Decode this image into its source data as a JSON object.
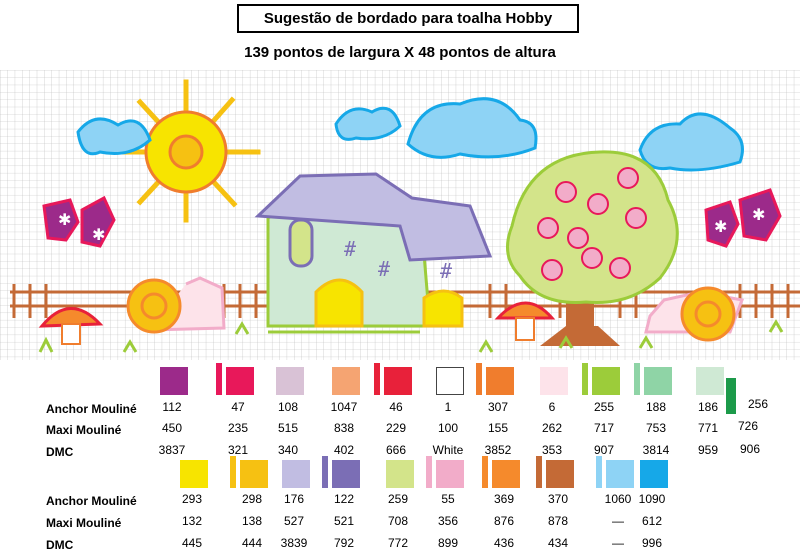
{
  "title": "Sugestão de bordado para toalha Hobby",
  "subtitle": "139 pontos de largura X 48 pontos de altura",
  "row_labels": {
    "anchor": "Anchor Mouliné",
    "maxi": "Maxi Mouliné",
    "dmc": "DMC"
  },
  "colors_top": [
    {
      "hex": "#9c2a8a",
      "hex2": null,
      "anchor": "112",
      "maxi": "450",
      "dmc": "3837"
    },
    {
      "hex": "#e8185a",
      "hex2": "#e8185a",
      "anchor": "47",
      "maxi": "235",
      "dmc": "321"
    },
    {
      "hex": "#d9c2d6",
      "hex2": null,
      "anchor": "108",
      "maxi": "515",
      "dmc": "340"
    },
    {
      "hex": "#f5a472",
      "hex2": null,
      "anchor": "1047",
      "maxi": "838",
      "dmc": "402"
    },
    {
      "hex": "#e8213a",
      "hex2": "#e8213a",
      "anchor": "46",
      "maxi": "229",
      "dmc": "666"
    },
    {
      "hex": "#ffffff",
      "hex2": null,
      "anchor": "1",
      "maxi": "100",
      "dmc": "White"
    },
    {
      "hex": "#f07d2d",
      "hex2": "#f07d2d",
      "anchor": "307",
      "maxi": "155",
      "dmc": "3852"
    },
    {
      "hex": "#fde3ea",
      "hex2": null,
      "anchor": "6",
      "maxi": "262",
      "dmc": "353"
    },
    {
      "hex": "#9ccc3a",
      "hex2": "#9ccc3a",
      "anchor": "255",
      "maxi": "717",
      "dmc": "907"
    },
    {
      "hex": "#8fd4a6",
      "hex2": "#8fd4a6",
      "anchor": "188",
      "maxi": "753",
      "dmc": "3814"
    },
    {
      "hex": "#cfe9d4",
      "hex2": null,
      "anchor": "186",
      "maxi": "771",
      "dmc": "959"
    },
    {
      "hex": "#1c9a4a",
      "hex2": null,
      "anchor": "256",
      "maxi": "726",
      "dmc": "906"
    }
  ],
  "colors_bottom": [
    {
      "hex": "#f7e400",
      "hex2": null,
      "anchor": "293",
      "maxi": "132",
      "dmc": "445"
    },
    {
      "hex": "#f6c112",
      "hex2": "#f6c112",
      "anchor": "298",
      "maxi": "138",
      "dmc": "444"
    },
    {
      "hex": "#c1bde2",
      "hex2": null,
      "anchor": "176",
      "maxi": "527",
      "dmc": "3839"
    },
    {
      "hex": "#7b6eb5",
      "hex2": "#7b6eb5",
      "anchor": "122",
      "maxi": "521",
      "dmc": "792"
    },
    {
      "hex": "#d3e48a",
      "hex2": null,
      "anchor": "259",
      "maxi": "708",
      "dmc": "772"
    },
    {
      "hex": "#f2acc9",
      "hex2": "#f2acc9",
      "anchor": "55",
      "maxi": "356",
      "dmc": "899"
    },
    {
      "hex": "#f58a2c",
      "hex2": "#f58a2c",
      "anchor": "369",
      "maxi": "876",
      "dmc": "436"
    },
    {
      "hex": "#c46a36",
      "hex2": "#c46a36",
      "anchor": "370",
      "maxi": "878",
      "dmc": "434"
    },
    {
      "hex": "#8ed3f5",
      "hex2": "#8ed3f5",
      "anchor": "1060",
      "maxi": "—",
      "dmc": "—"
    },
    {
      "hex": "#16a8e8",
      "hex2": null,
      "anchor": "1090",
      "maxi": "612",
      "dmc": "996"
    }
  ]
}
